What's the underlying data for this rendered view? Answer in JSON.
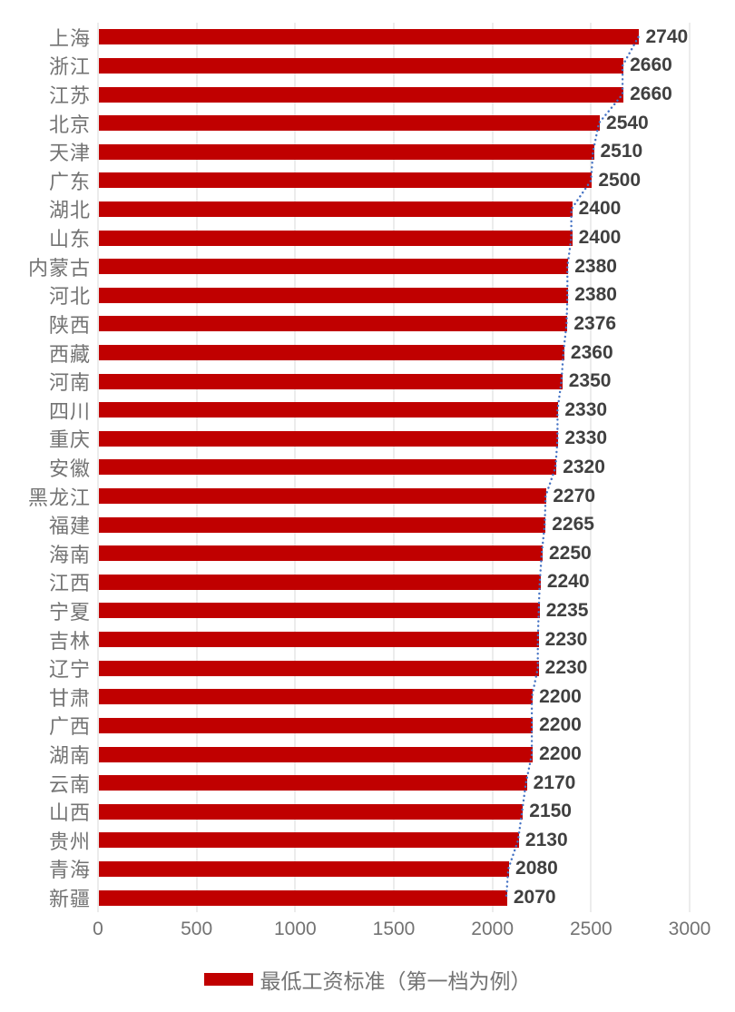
{
  "chart_data": {
    "type": "bar",
    "orientation": "horizontal",
    "title": "",
    "xlabel": "",
    "ylabel": "",
    "categories": [
      "上海",
      "浙江",
      "江苏",
      "北京",
      "天津",
      "广东",
      "湖北",
      "山东",
      "内蒙古",
      "河北",
      "陕西",
      "西藏",
      "河南",
      "四川",
      "重庆",
      "安徽",
      "黑龙江",
      "福建",
      "海南",
      "江西",
      "宁夏",
      "吉林",
      "辽宁",
      "甘肃",
      "广西",
      "湖南",
      "云南",
      "山西",
      "贵州",
      "青海",
      "新疆"
    ],
    "values": [
      2740,
      2660,
      2660,
      2540,
      2510,
      2500,
      2400,
      2400,
      2380,
      2380,
      2376,
      2360,
      2350,
      2330,
      2330,
      2320,
      2270,
      2265,
      2250,
      2240,
      2235,
      2230,
      2230,
      2200,
      2200,
      2200,
      2170,
      2150,
      2130,
      2080,
      2070
    ],
    "series": [
      {
        "name": "最低工资标准（第一档为例）",
        "values": [
          2740,
          2660,
          2660,
          2540,
          2510,
          2500,
          2400,
          2400,
          2380,
          2380,
          2376,
          2360,
          2350,
          2330,
          2330,
          2320,
          2270,
          2265,
          2250,
          2240,
          2235,
          2230,
          2230,
          2200,
          2200,
          2200,
          2170,
          2150,
          2130,
          2080,
          2070
        ]
      }
    ],
    "xlim": [
      0,
      3000
    ],
    "x_ticks": [
      0,
      500,
      1000,
      1500,
      2000,
      2500,
      3000
    ],
    "grid": true,
    "data_labels": true,
    "trendline": true,
    "legend_position": "bottom",
    "colors": {
      "bar": "#c00000",
      "trendline": "#4472c4",
      "gridline": "#d9d9d9",
      "value_label": "#404040",
      "axis_label": "#737373"
    }
  },
  "legend": {
    "label": "最低工资标准（第一档为例）",
    "swatch_color": "#c00000"
  }
}
